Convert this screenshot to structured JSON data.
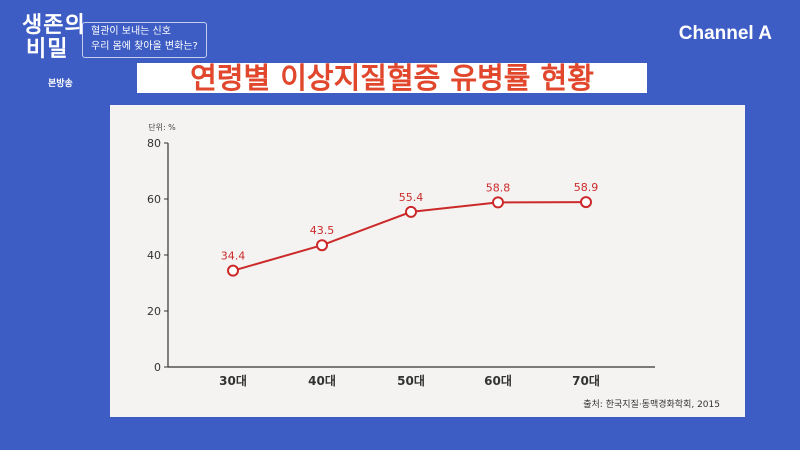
{
  "show": {
    "title_line1": "생존의",
    "title_line2": "비밀",
    "tag": "본방송",
    "subtitle_line1": "혈관이 보내는 신호",
    "subtitle_line2": "우리 몸에 찾아올 변화는?"
  },
  "channel": {
    "logo": "Channel A"
  },
  "colors": {
    "background": "#3d5cc4",
    "title": "#e0472c",
    "series": "#cc2a2a",
    "panel": "#f4f3f1"
  },
  "chart_data": {
    "type": "line",
    "title": "연령별 이상지질혈증 유병률 현황",
    "unit_label": "단위: %",
    "categories": [
      "30대",
      "40대",
      "50대",
      "60대",
      "70대"
    ],
    "series": [
      {
        "values": [
          34.4,
          43.5,
          55.4,
          58.8,
          58.9
        ]
      }
    ],
    "data_labels": [
      "34.4",
      "43.5",
      "55.4",
      "58.8",
      "58.9"
    ],
    "yticks": [
      0,
      20,
      40,
      60,
      80
    ],
    "ylim": [
      0,
      80
    ],
    "grid": false,
    "source": "출처: 한국지질·동맥경화학회, 2015"
  }
}
